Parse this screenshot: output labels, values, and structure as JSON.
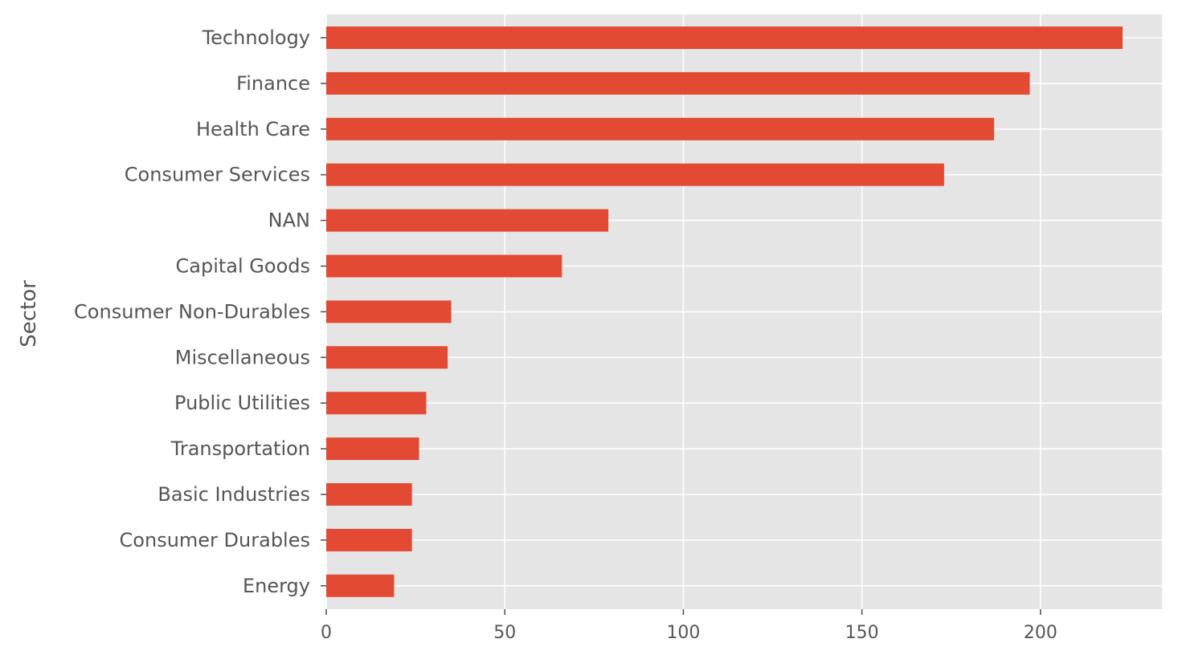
{
  "chart_data": {
    "type": "bar",
    "orientation": "horizontal",
    "title": "",
    "xlabel": "",
    "ylabel": "Sector",
    "categories": [
      "Technology",
      "Finance",
      "Health Care",
      "Consumer Services",
      "NAN",
      "Capital Goods",
      "Consumer Non-Durables",
      "Miscellaneous",
      "Public Utilities",
      "Transportation",
      "Basic Industries",
      "Consumer Durables",
      "Energy"
    ],
    "values": [
      223,
      197,
      187,
      173,
      79,
      66,
      35,
      34,
      28,
      26,
      24,
      24,
      19
    ],
    "xlim": [
      0,
      234
    ],
    "xticks": [
      0,
      50,
      100,
      150,
      200
    ],
    "grid": true,
    "legend": "none",
    "colors": {
      "bar": "#E24A33",
      "plot_background": "#E5E5E5",
      "grid": "#FFFFFF",
      "tick_label": "#555555"
    }
  }
}
